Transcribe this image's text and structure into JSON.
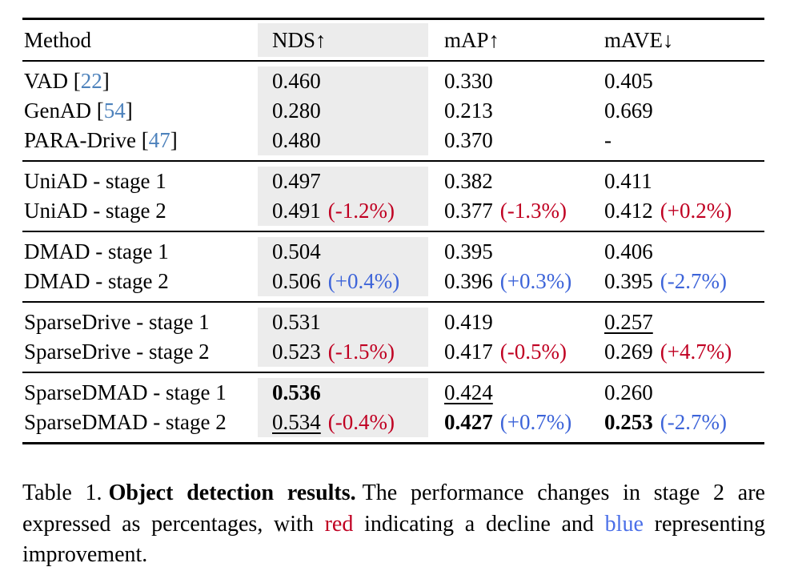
{
  "colors": {
    "highlight_gray": "#ececec",
    "decline_red": "#c00022",
    "improve_blue": "#3d64d9",
    "citation_blue": "#4d82bc",
    "rule_black": "#000000"
  },
  "table": {
    "header": {
      "method": "Method",
      "nds": "NDS↑",
      "map": "mAP↑",
      "mave": "mAVE↓"
    },
    "groups": [
      {
        "rows": [
          {
            "prefix": "VAD [",
            "cite": "22",
            "suffix": "]",
            "cells": [
              {
                "v": "0.460"
              },
              {
                "v": "0.330"
              },
              {
                "v": "0.405"
              }
            ]
          },
          {
            "prefix": "GenAD [",
            "cite": "54",
            "suffix": "]",
            "cells": [
              {
                "v": "0.280"
              },
              {
                "v": "0.213"
              },
              {
                "v": "0.669"
              }
            ]
          },
          {
            "prefix": "PARA-Drive [",
            "cite": "47",
            "suffix": "]",
            "cells": [
              {
                "v": "0.480"
              },
              {
                "v": "0.370"
              },
              {
                "v": "-"
              }
            ]
          }
        ]
      },
      {
        "rows": [
          {
            "prefix": "UniAD - stage 1",
            "cells": [
              {
                "v": "0.497"
              },
              {
                "v": "0.382"
              },
              {
                "v": "0.411"
              }
            ]
          },
          {
            "prefix": "UniAD - stage 2",
            "cells": [
              {
                "v": "0.491",
                "d": "(-1.2%)",
                "dc": "red"
              },
              {
                "v": "0.377",
                "d": "(-1.3%)",
                "dc": "red"
              },
              {
                "v": "0.412",
                "d": "(+0.2%)",
                "dc": "red"
              }
            ]
          }
        ]
      },
      {
        "rows": [
          {
            "prefix": "DMAD - stage 1",
            "cells": [
              {
                "v": "0.504"
              },
              {
                "v": "0.395"
              },
              {
                "v": "0.406"
              }
            ]
          },
          {
            "prefix": "DMAD - stage 2",
            "cells": [
              {
                "v": "0.506",
                "d": "(+0.4%)",
                "dc": "blue"
              },
              {
                "v": "0.396",
                "d": "(+0.3%)",
                "dc": "blue"
              },
              {
                "v": "0.395",
                "d": "(-2.7%)",
                "dc": "blue"
              }
            ]
          }
        ]
      },
      {
        "rows": [
          {
            "prefix": "SparseDrive - stage 1",
            "cells": [
              {
                "v": "0.531"
              },
              {
                "v": "0.419"
              },
              {
                "v": "0.257",
                "underline": true
              }
            ]
          },
          {
            "prefix": "SparseDrive - stage 2",
            "cells": [
              {
                "v": "0.523",
                "d": "(-1.5%)",
                "dc": "red"
              },
              {
                "v": "0.417",
                "d": "(-0.5%)",
                "dc": "red"
              },
              {
                "v": "0.269",
                "d": "(+4.7%)",
                "dc": "red"
              }
            ]
          }
        ]
      },
      {
        "rows": [
          {
            "prefix": "SparseDMAD - stage 1",
            "cells": [
              {
                "v": "0.536",
                "bold": true
              },
              {
                "v": "0.424",
                "underline": true
              },
              {
                "v": "0.260"
              }
            ]
          },
          {
            "prefix": "SparseDMAD - stage 2",
            "cells": [
              {
                "v": "0.534",
                "underline": true,
                "d": "(-0.4%)",
                "dc": "red"
              },
              {
                "v": "0.427",
                "bold": true,
                "d": "(+0.7%)",
                "dc": "blue"
              },
              {
                "v": "0.253",
                "bold": true,
                "d": "(-2.7%)",
                "dc": "blue"
              }
            ]
          }
        ]
      }
    ]
  },
  "caption": {
    "label": "Table 1.",
    "title": "Object detection results.",
    "body_1": "The performance changes in stage 2 are expressed as percentages, with",
    "red_word": "red",
    "body_2": "indicating a decline and",
    "blue_word": "blue",
    "body_3": "representing improvement."
  }
}
